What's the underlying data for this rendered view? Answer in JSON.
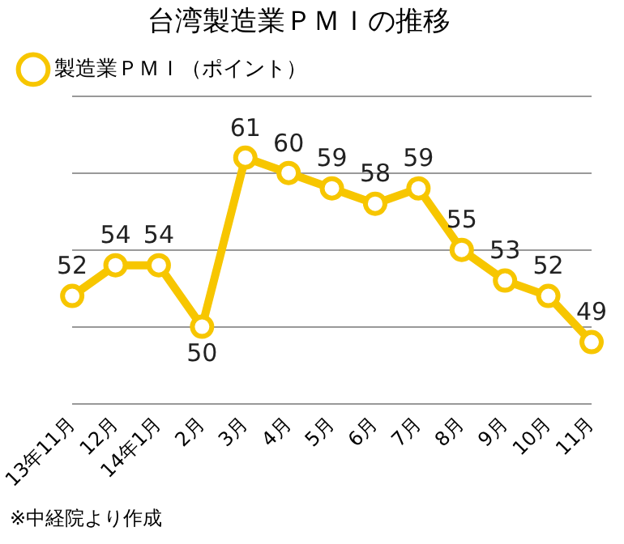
{
  "chart_data": {
    "type": "line",
    "title": "台湾製造業ＰＭＩの推移",
    "categories": [
      "13年11月",
      "12月",
      "14年1月",
      "2月",
      "3月",
      "4月",
      "5月",
      "6月",
      "7月",
      "8月",
      "9月",
      "10月",
      "11月"
    ],
    "series": [
      {
        "name": "製造業ＰＭＩ（ポイント）",
        "color": "#f7c600",
        "values": [
          52,
          54,
          54,
          50,
          61,
          60,
          59,
          58,
          59,
          55,
          53,
          52,
          49
        ]
      }
    ],
    "ylim": [
      45,
      65
    ],
    "yticks": [
      {
        "value": 45,
        "label": null
      },
      {
        "value": 50,
        "label": null
      },
      {
        "value": 55,
        "label": null
      },
      {
        "value": 60,
        "label": null
      },
      {
        "value": 65,
        "label": null
      }
    ],
    "tick_labels": "x",
    "grid": "y",
    "legend": "top left",
    "marker": "circle",
    "line_style": "solid",
    "data_labels": true,
    "annotations": [
      "※中経院より作成"
    ]
  }
}
